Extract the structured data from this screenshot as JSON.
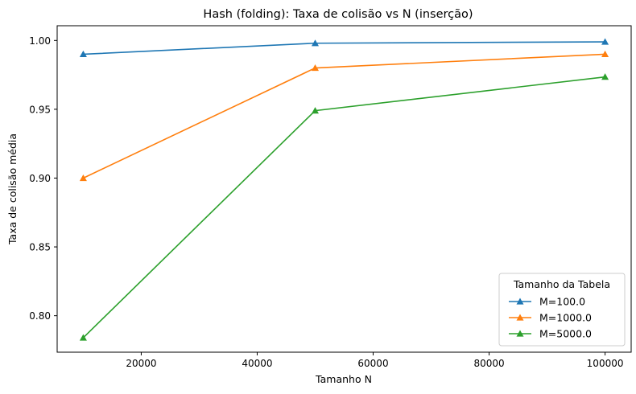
{
  "chart_data": {
    "type": "line",
    "title": "Hash (folding): Taxa de colisão vs N (inserção)",
    "xlabel": "Tamanho N",
    "ylabel": "Taxa de colisão média",
    "x": [
      10000,
      50000,
      100000
    ],
    "xlim": [
      5500,
      104500
    ],
    "ylim": [
      0.7735,
      1.0107
    ],
    "xticks": [
      20000,
      40000,
      60000,
      80000,
      100000
    ],
    "xtick_labels": [
      "20000",
      "40000",
      "60000",
      "80000",
      "100000"
    ],
    "yticks": [
      0.8,
      0.85,
      0.9,
      0.95,
      1.0
    ],
    "ytick_labels": [
      "0.80",
      "0.85",
      "0.90",
      "0.95",
      "1.00"
    ],
    "grid": false,
    "legend": {
      "title": "Tamanho da Tabela",
      "placement": "lower-right"
    },
    "series": [
      {
        "name": "M=100.0",
        "color": "#1f77b4",
        "marker": "triangle",
        "values": [
          0.99,
          0.998,
          0.999
        ]
      },
      {
        "name": "M=1000.0",
        "color": "#ff7f0e",
        "marker": "triangle",
        "values": [
          0.9,
          0.98,
          0.99
        ]
      },
      {
        "name": "M=5000.0",
        "color": "#2ca02c",
        "marker": "triangle",
        "values": [
          0.784,
          0.949,
          0.9735
        ]
      }
    ]
  }
}
